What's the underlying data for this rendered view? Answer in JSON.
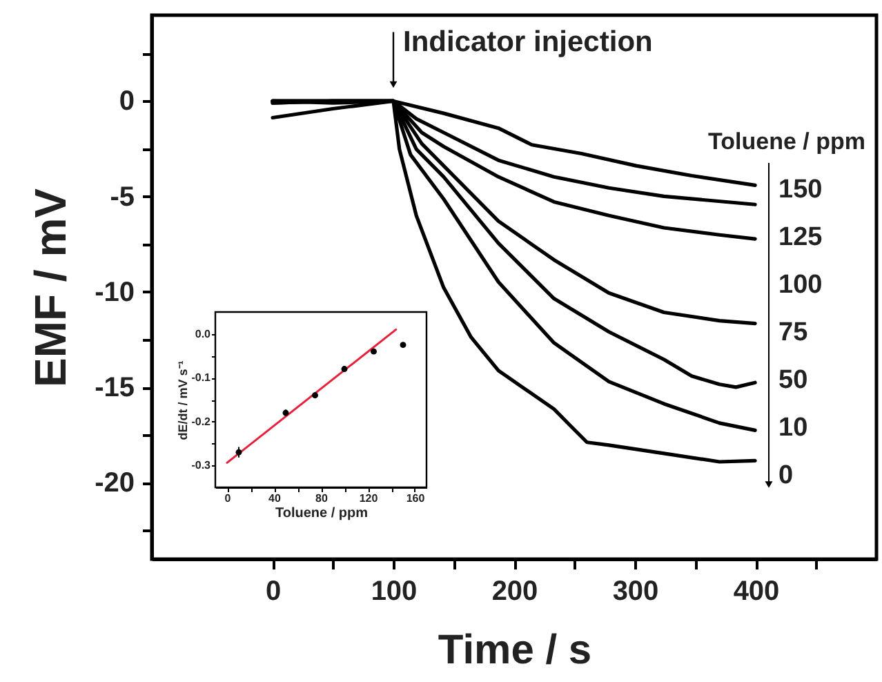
{
  "chart_data": [
    {
      "type": "line",
      "xlabel": "Time / s",
      "ylabel": "EMF / mV",
      "xlim": [
        -100,
        500
      ],
      "ylim": [
        -24,
        4.5
      ],
      "xticks": [
        0,
        {
          "value": 50,
          "label": null
        },
        100,
        {
          "value": 150,
          "label": null
        },
        200,
        {
          "value": 250,
          "label": null
        },
        300,
        {
          "value": 350,
          "label": null
        },
        400,
        {
          "value": 450,
          "label": null
        }
      ],
      "yticks": [
        {
          "value": 2.5,
          "label": null
        },
        0,
        {
          "value": -2.5,
          "label": null
        },
        -5,
        {
          "value": -7.5,
          "label": null
        },
        -10,
        {
          "value": -12.5,
          "label": null
        },
        -15,
        {
          "value": -17.5,
          "label": null
        },
        -20,
        {
          "value": -22.5,
          "label": null
        }
      ],
      "series": [
        {
          "color": "#000000",
          "x": [
            0,
            50,
            100,
            141.6,
            187,
            214.6,
            255.7,
            301,
            347,
            399.5
          ],
          "values": [
            -0.87,
            -0.4,
            0,
            -0.64,
            -1.42,
            -2.29,
            -2.75,
            -3.39,
            -3.91,
            -4.41
          ]
        },
        {
          "color": "#000000",
          "x": [
            0,
            50,
            100,
            119,
            141.6,
            187,
            233,
            278.5,
            324,
            399.5
          ],
          "values": [
            -0.1,
            0,
            0,
            -0.93,
            -1.65,
            -3.1,
            -3.97,
            -4.55,
            -4.99,
            -5.42
          ]
        },
        {
          "color": "#000000",
          "x": [
            0,
            50,
            100,
            123.5,
            141.6,
            187,
            233,
            278.5,
            324,
            370,
            399.5
          ],
          "values": [
            0,
            0,
            0,
            -1.65,
            -2.38,
            -3.97,
            -5.28,
            -6.0,
            -6.64,
            -7.01,
            -7.22
          ]
        },
        {
          "color": "#000000",
          "x": [
            0,
            50,
            100,
            123.5,
            141.6,
            187,
            233,
            278.5,
            324,
            370,
            399.5
          ],
          "values": [
            0,
            -0.1,
            0,
            -2.23,
            -3.39,
            -6.29,
            -8.32,
            -10.06,
            -11.07,
            -11.51,
            -11.65
          ]
        },
        {
          "color": "#000000",
          "x": [
            0,
            50,
            100,
            119,
            141.6,
            187,
            233,
            278.5,
            324,
            347,
            370,
            383.6,
            399.5
          ],
          "values": [
            -0.1,
            0,
            0,
            -2.52,
            -3.97,
            -7.45,
            -10.35,
            -12.09,
            -13.54,
            -14.41,
            -14.84,
            -14.99,
            -14.75
          ]
        },
        {
          "color": "#000000",
          "x": [
            0,
            50,
            100,
            114.2,
            141.6,
            187,
            233,
            278.5,
            324,
            370,
            399.5
          ],
          "values": [
            0,
            0,
            0,
            -2.81,
            -5.13,
            -9.48,
            -12.67,
            -14.7,
            -15.86,
            -16.87,
            -17.25
          ]
        },
        {
          "color": "#000000",
          "x": [
            0,
            50,
            100,
            105,
            119,
            141.6,
            164.4,
            187,
            233,
            246.6,
            260.3,
            278.5,
            324,
            370,
            399.5
          ],
          "values": [
            0,
            0,
            0,
            -2.52,
            -6.0,
            -9.77,
            -12.38,
            -14.12,
            -16.14,
            -17.01,
            -17.88,
            -18.03,
            -18.46,
            -18.9,
            -18.84
          ]
        }
      ],
      "annotations": [
        {
          "text": "Indicator injection",
          "x": 100,
          "y": 0
        },
        "Toluene / ppm",
        "150",
        "125",
        "100",
        "75",
        "50",
        "10",
        "0"
      ]
    },
    {
      "type": "scatter",
      "xlabel": "Toluene / ppm",
      "ylabel": "dE/dt / mV s⁻¹",
      "xlim": [
        -10,
        170
      ],
      "ylim": [
        -0.35,
        0.05
      ],
      "xticks": [
        0,
        {
          "value": 20,
          "label": null
        },
        40,
        {
          "value": 60,
          "label": null
        },
        80,
        {
          "value": 100,
          "label": null
        },
        120,
        {
          "value": 140,
          "label": null
        },
        160
      ],
      "yticks": [
        {
          "value": 0,
          "label": "0.0"
        },
        {
          "value": -0.05,
          "label": null
        },
        {
          "value": -0.1,
          "label": "-0.1"
        },
        {
          "value": -0.15,
          "label": null
        },
        {
          "value": -0.2,
          "label": "-0.2"
        },
        {
          "value": -0.25,
          "label": null
        },
        {
          "value": -0.3,
          "label": "-0.3"
        }
      ],
      "series": [
        {
          "type": "line",
          "color": "#e8203a",
          "x": [
            0,
            144
          ],
          "values": [
            -0.294,
            0.01
          ]
        },
        {
          "type": "scatter",
          "marker": "circle",
          "color": "#000000",
          "x": [
            10,
            50,
            75,
            100,
            125,
            150
          ],
          "values": [
            -0.27,
            -0.18,
            -0.14,
            -0.08,
            -0.04,
            -0.025
          ],
          "errors": [
            0.012,
            0.007,
            0.007,
            0.006,
            0.006,
            0.005
          ]
        }
      ]
    }
  ]
}
